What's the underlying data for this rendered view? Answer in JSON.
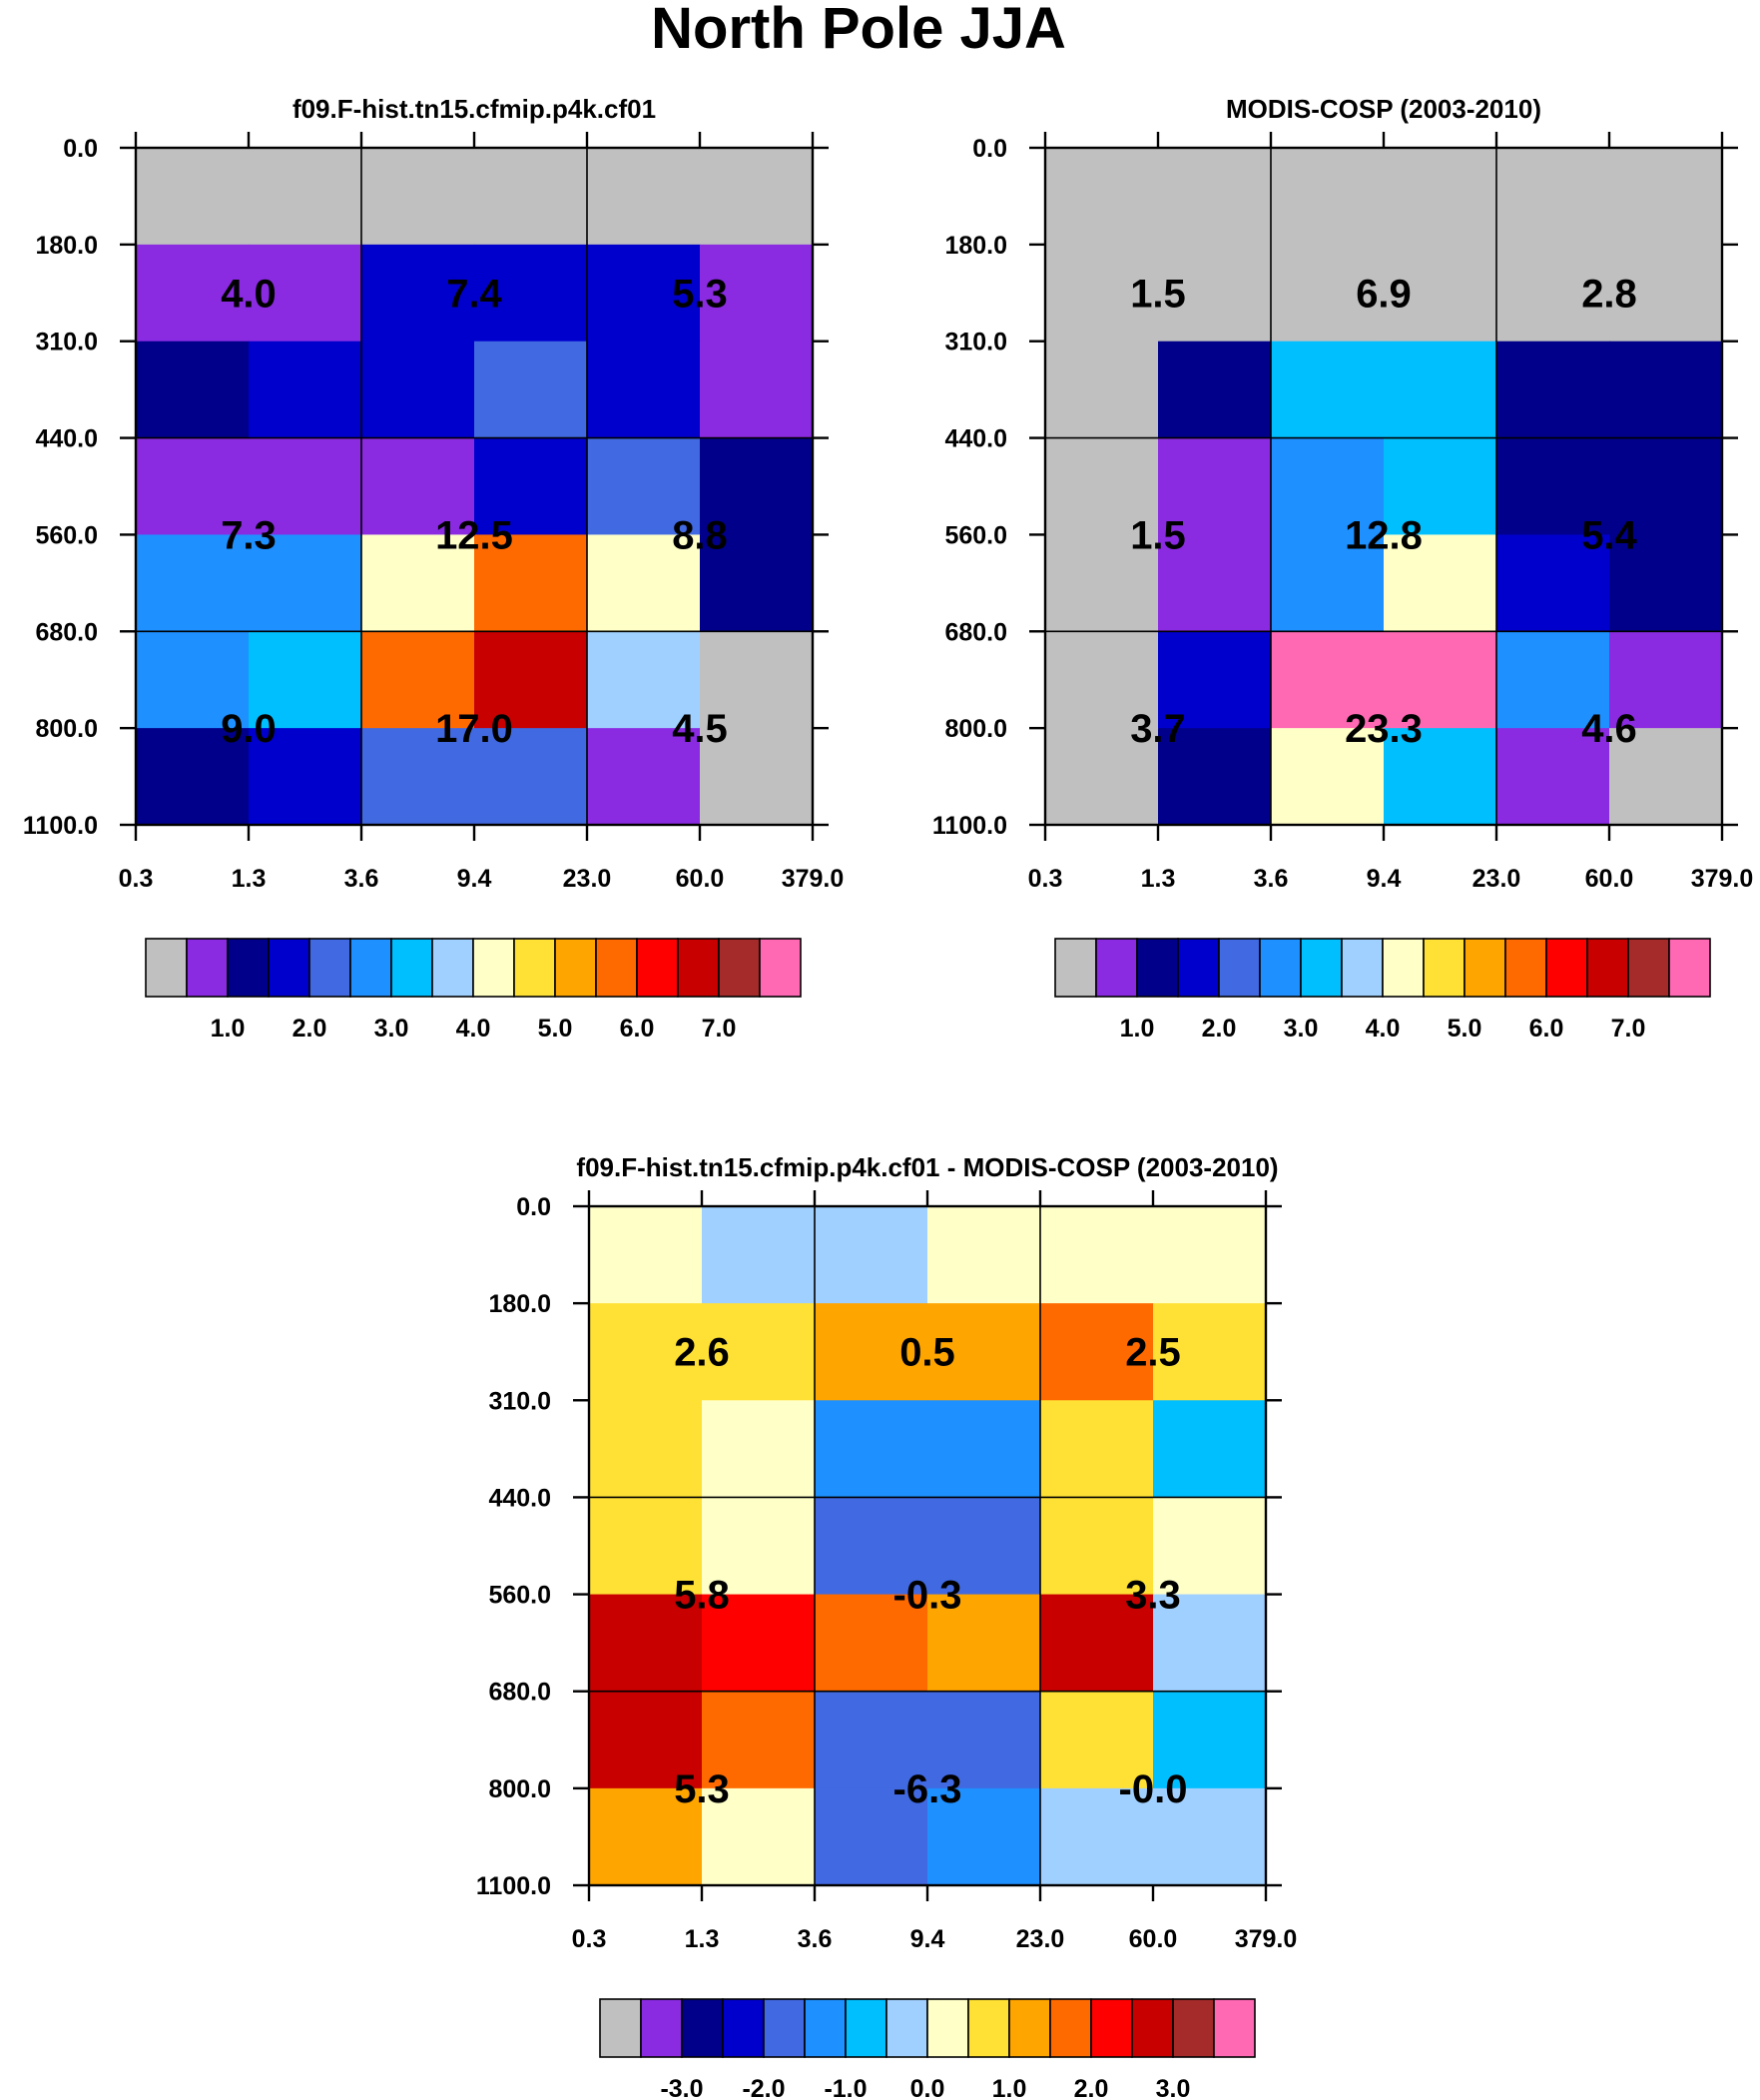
{
  "title": "North Pole JJA",
  "palette": {
    "missing": "#c0c0c0",
    "colors": [
      "#c0c0c0",
      "#8a2be2",
      "#00008b",
      "#0000cd",
      "#4169e1",
      "#1e90ff",
      "#00bfff",
      "#a0d0ff",
      "#ffffc8",
      "#ffe135",
      "#ffa500",
      "#ff6a00",
      "#ff0000",
      "#c80000",
      "#a52a2a",
      "#ff69b4"
    ]
  },
  "chart_data": [
    {
      "type": "heatmap",
      "id": "model",
      "title": "f09.F-hist.tn15.cfmip.p4k.cf01",
      "x_tick_labels": [
        "0.3",
        "1.3",
        "3.6",
        "9.4",
        "23.0",
        "60.0",
        "379.0"
      ],
      "y_tick_labels": [
        "0.0",
        "180.0",
        "310.0",
        "440.0",
        "560.0",
        "680.0",
        "800.0",
        "1100.0"
      ],
      "cell_colors": [
        [
          0,
          0,
          0,
          0,
          0,
          0
        ],
        [
          1,
          1,
          3,
          3,
          3,
          1
        ],
        [
          2,
          3,
          3,
          4,
          3,
          1
        ],
        [
          1,
          1,
          1,
          3,
          4,
          2
        ],
        [
          5,
          5,
          8,
          11,
          8,
          2
        ],
        [
          5,
          6,
          11,
          13,
          7,
          0
        ],
        [
          2,
          3,
          4,
          4,
          1,
          0
        ]
      ],
      "group_values": [
        [
          "4.0",
          "7.4",
          "5.3"
        ],
        [
          "7.3",
          "12.5",
          "8.8"
        ],
        [
          "9.0",
          "17.0",
          "4.5"
        ]
      ],
      "colorbar_labels": [
        "1.0",
        "2.0",
        "3.0",
        "4.0",
        "5.0",
        "6.0",
        "7.0"
      ]
    },
    {
      "type": "heatmap",
      "id": "obs",
      "title": "MODIS-COSP (2003-2010)",
      "x_tick_labels": [
        "0.3",
        "1.3",
        "3.6",
        "9.4",
        "23.0",
        "60.0",
        "379.0"
      ],
      "y_tick_labels": [
        "0.0",
        "180.0",
        "310.0",
        "440.0",
        "560.0",
        "680.0",
        "800.0",
        "1100.0"
      ],
      "cell_colors": [
        [
          0,
          0,
          0,
          0,
          0,
          0
        ],
        [
          0,
          0,
          0,
          0,
          0,
          0
        ],
        [
          0,
          2,
          6,
          6,
          2,
          2
        ],
        [
          0,
          1,
          5,
          6,
          2,
          2
        ],
        [
          0,
          1,
          5,
          8,
          3,
          2
        ],
        [
          0,
          3,
          15,
          15,
          5,
          1
        ],
        [
          0,
          2,
          8,
          6,
          1,
          0
        ]
      ],
      "group_values": [
        [
          "1.5",
          "6.9",
          "2.8"
        ],
        [
          "1.5",
          "12.8",
          "5.4"
        ],
        [
          "3.7",
          "23.3",
          "4.6"
        ]
      ],
      "colorbar_labels": [
        "1.0",
        "2.0",
        "3.0",
        "4.0",
        "5.0",
        "6.0",
        "7.0"
      ]
    },
    {
      "type": "heatmap",
      "id": "diff",
      "title": "f09.F-hist.tn15.cfmip.p4k.cf01 - MODIS-COSP (2003-2010)",
      "x_tick_labels": [
        "0.3",
        "1.3",
        "3.6",
        "9.4",
        "23.0",
        "60.0",
        "379.0"
      ],
      "y_tick_labels": [
        "0.0",
        "180.0",
        "310.0",
        "440.0",
        "560.0",
        "680.0",
        "800.0",
        "1100.0"
      ],
      "cell_colors": [
        [
          8,
          7,
          7,
          8,
          8,
          8
        ],
        [
          9,
          9,
          10,
          10,
          11,
          9
        ],
        [
          9,
          8,
          5,
          5,
          9,
          6
        ],
        [
          9,
          8,
          4,
          4,
          9,
          8
        ],
        [
          13,
          12,
          11,
          10,
          13,
          7
        ],
        [
          13,
          11,
          4,
          4,
          9,
          6
        ],
        [
          10,
          8,
          4,
          5,
          7,
          7
        ]
      ],
      "group_values": [
        [
          "2.6",
          "0.5",
          "2.5"
        ],
        [
          "5.8",
          "-0.3",
          "3.3"
        ],
        [
          "5.3",
          "-6.3",
          "-0.0"
        ]
      ],
      "colorbar_labels": [
        "-3.0",
        "-2.0",
        "-1.0",
        "0.0",
        "1.0",
        "2.0",
        "3.0"
      ]
    }
  ]
}
